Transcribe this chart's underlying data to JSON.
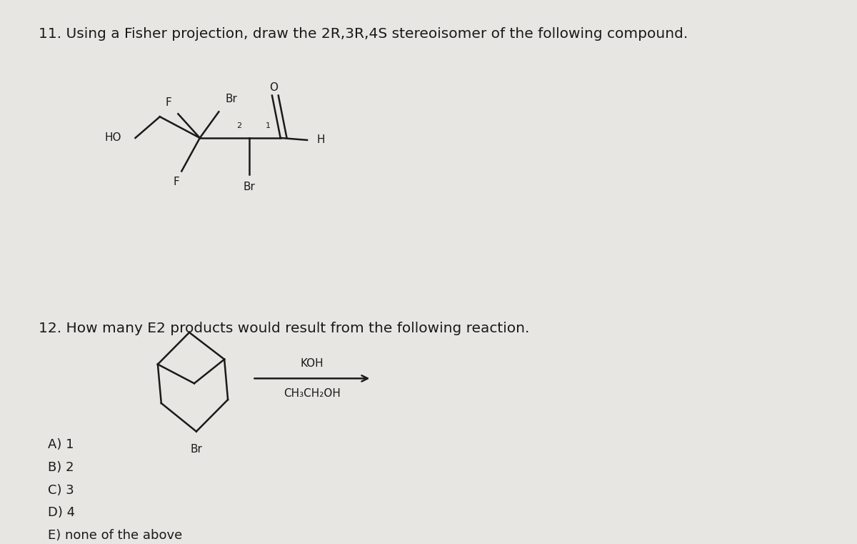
{
  "bg_color": "#e8e6e3",
  "title11": "11. Using a Fisher projection, draw the 2R,3R,4S stereoisomer of the following compound.",
  "title12": "12. How many E2 products would result from the following reaction.",
  "choices": [
    "A) 1",
    "B) 2",
    "C) 3",
    "D) 4",
    "E) none of the above"
  ],
  "reagents_top": "KOH",
  "reagents_bottom": "CH₃CH₂OH",
  "line_color": "#1a1a1a",
  "text_color": "#1a1a1a",
  "font_size_title": 14.5,
  "font_size_atom": 11,
  "font_size_choices": 13,
  "font_size_num": 8
}
